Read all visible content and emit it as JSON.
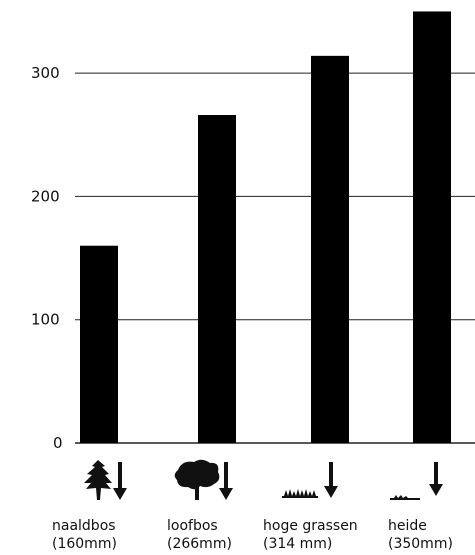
{
  "chart_data": {
    "type": "bar",
    "categories": [
      "naaldbos",
      "loofbos",
      "hoge grassen",
      "heide"
    ],
    "category_sublabels": [
      "(160mm)",
      "(266mm)",
      "(314 mm)",
      "(350mm)"
    ],
    "category_icons": [
      "conifer-tree-icon",
      "deciduous-tree-icon",
      "tall-grass-icon",
      "heath-icon"
    ],
    "values": [
      160,
      266,
      314,
      350
    ],
    "yticks": [
      0,
      100,
      200,
      300
    ],
    "ylim": [
      0,
      360
    ],
    "grid": true,
    "bar_color": "#000000",
    "title": "",
    "xlabel": "",
    "ylabel": ""
  }
}
